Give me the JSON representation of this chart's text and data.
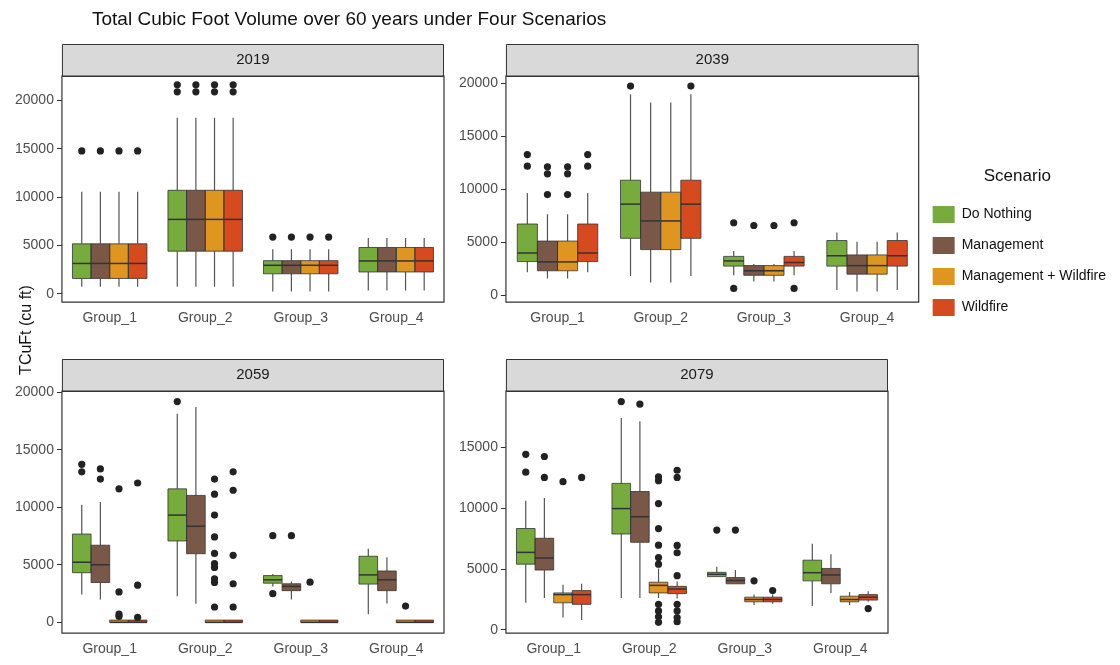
{
  "chart_data": [
    {
      "type": "box",
      "title": "Total Cubic Foot Volume over 60 years under Four Scenarios",
      "subtitle": "2019",
      "ylabel": "TCuFt (cu ft)",
      "categories": [
        "Group_1",
        "Group_2",
        "Group_3",
        "Group_4"
      ],
      "ylim": [
        -880,
        22530
      ],
      "yticks": [
        0,
        5000,
        10000,
        15000,
        20000
      ],
      "series": [
        {
          "color": "#77ab3d",
          "boxes": [
            {
              "low": 730,
              "q1": 1580,
              "median": 3130,
              "q3": 5160,
              "high": 10540,
              "outliers": [
                14780
              ]
            },
            {
              "low": 730,
              "q1": 4400,
              "median": 7690,
              "q3": 10700,
              "high": 18200,
              "outliers": [
                20890,
                21620
              ]
            },
            {
              "low": 220,
              "q1": 2060,
              "median": 2940,
              "q3": 3420,
              "high": 4590,
              "outliers": [
                5860
              ]
            },
            {
              "low": 320,
              "q1": 2250,
              "median": 3390,
              "q3": 4780,
              "high": 5760
            }
          ]
        },
        {
          "color": "#7a5848",
          "boxes": [
            {
              "low": 730,
              "q1": 1580,
              "median": 3130,
              "q3": 5160,
              "high": 10540,
              "outliers": [
                14780
              ]
            },
            {
              "low": 730,
              "q1": 4400,
              "median": 7690,
              "q3": 10700,
              "high": 18200,
              "outliers": [
                20890,
                21620
              ]
            },
            {
              "low": 220,
              "q1": 2060,
              "median": 2940,
              "q3": 3420,
              "high": 4590,
              "outliers": [
                5860
              ]
            },
            {
              "low": 320,
              "q1": 2250,
              "median": 3390,
              "q3": 4780,
              "high": 5760
            }
          ]
        },
        {
          "color": "#de9621",
          "boxes": [
            {
              "low": 730,
              "q1": 1580,
              "median": 3130,
              "q3": 5160,
              "high": 10540,
              "outliers": [
                14780
              ]
            },
            {
              "low": 730,
              "q1": 4400,
              "median": 7690,
              "q3": 10700,
              "high": 18200,
              "outliers": [
                20890,
                21620
              ]
            },
            {
              "low": 220,
              "q1": 2060,
              "median": 2940,
              "q3": 3420,
              "high": 4590,
              "outliers": [
                5860
              ]
            },
            {
              "low": 320,
              "q1": 2250,
              "median": 3390,
              "q3": 4780,
              "high": 5760
            }
          ]
        },
        {
          "color": "#d64a1f",
          "boxes": [
            {
              "low": 730,
              "q1": 1580,
              "median": 3130,
              "q3": 5160,
              "high": 10540,
              "outliers": [
                14780
              ]
            },
            {
              "low": 730,
              "q1": 4400,
              "median": 7690,
              "q3": 10700,
              "high": 18200,
              "outliers": [
                20890,
                21620
              ]
            },
            {
              "low": 220,
              "q1": 2060,
              "median": 2940,
              "q3": 3420,
              "high": 4590,
              "outliers": [
                5860
              ]
            },
            {
              "low": 320,
              "q1": 2250,
              "median": 3390,
              "q3": 4780,
              "high": 5760
            }
          ]
        }
      ]
    },
    {
      "type": "box",
      "subtitle": "2039",
      "legend": "right",
      "legend_title": "Scenario",
      "categories": [
        "Group_1",
        "Group_2",
        "Group_3",
        "Group_4"
      ],
      "ylim": [
        -660,
        20720
      ],
      "yticks": [
        0,
        5000,
        10000,
        15000,
        20000
      ],
      "series": [
        {
          "name": "Do Nothing",
          "color": "#77ab3d",
          "boxes": [
            {
              "low": 2170,
              "q1": 3180,
              "median": 3990,
              "q3": 6730,
              "high": 9650,
              "outliers": [
                12200,
                13290
              ]
            },
            {
              "low": 1820,
              "q1": 5380,
              "median": 8610,
              "q3": 10870,
              "high": 18990,
              "outliers": [
                19770
              ]
            },
            {
              "low": 1880,
              "q1": 2750,
              "median": 3240,
              "q3": 3670,
              "high": 4190,
              "outliers": [
                640,
                6850
              ]
            },
            {
              "low": 490,
              "q1": 2750,
              "median": 3730,
              "q3": 5170,
              "high": 5920
            }
          ]
        },
        {
          "name": "Management",
          "color": "#7a5848",
          "boxes": [
            {
              "low": 1590,
              "q1": 2310,
              "median": 3150,
              "q3": 5120,
              "high": 7660,
              "outliers": [
                9510,
                11470,
                12140
              ]
            },
            {
              "low": 1210,
              "q1": 4310,
              "median": 7020,
              "q3": 9740,
              "high": 18210
            },
            {
              "low": 1300,
              "q1": 1880,
              "median": 2310,
              "q3": 2800,
              "high": 2950,
              "outliers": [
                6590
              ]
            },
            {
              "low": 350,
              "q1": 1990,
              "median": 2800,
              "q3": 3810,
              "high": 5060
            }
          ]
        },
        {
          "name": "Management + Wildfire",
          "color": "#de9621",
          "boxes": [
            {
              "low": 1590,
              "q1": 2310,
              "median": 3150,
              "q3": 5120,
              "high": 7660,
              "outliers": [
                9510,
                11470,
                12140
              ]
            },
            {
              "low": 1210,
              "q1": 4310,
              "median": 7020,
              "q3": 9740,
              "high": 18210
            },
            {
              "low": 1300,
              "q1": 1880,
              "median": 2310,
              "q3": 2800,
              "high": 2950,
              "outliers": [
                6590
              ]
            },
            {
              "low": 350,
              "q1": 1990,
              "median": 2800,
              "q3": 3810,
              "high": 5060
            }
          ]
        },
        {
          "name": "Wildfire",
          "color": "#d64a1f",
          "boxes": [
            {
              "low": 2170,
              "q1": 3180,
              "median": 3990,
              "q3": 6730,
              "high": 9650,
              "outliers": [
                12200,
                13290
              ]
            },
            {
              "low": 1820,
              "q1": 5380,
              "median": 8610,
              "q3": 10870,
              "high": 18990,
              "outliers": [
                19770
              ]
            },
            {
              "low": 1880,
              "q1": 2750,
              "median": 3090,
              "q3": 3670,
              "high": 4190,
              "outliers": [
                640,
                6850
              ]
            },
            {
              "low": 490,
              "q1": 2750,
              "median": 3730,
              "q3": 5170,
              "high": 5920
            }
          ]
        }
      ]
    },
    {
      "type": "box",
      "subtitle": "2059",
      "categories": [
        "Group_1",
        "Group_2",
        "Group_3",
        "Group_4"
      ],
      "ylim": [
        -940,
        20120
      ],
      "yticks": [
        0,
        5000,
        10000,
        15000,
        20000
      ],
      "series": [
        {
          "color": "#77ab3d",
          "boxes": [
            {
              "low": 2420,
              "q1": 4320,
              "median": 5230,
              "q3": 7680,
              "high": 10240,
              "outliers": [
                13090,
                13740
              ]
            },
            {
              "low": 2280,
              "q1": 7080,
              "median": 9330,
              "q3": 11610,
              "high": 18150,
              "outliers": [
                19200
              ]
            },
            {
              "low": 3130,
              "q1": 3410,
              "median": 3700,
              "q3": 4070,
              "high": 4210,
              "outliers": [
                2500,
                7540
              ]
            },
            {
              "low": 710,
              "q1": 3330,
              "median": 4130,
              "q3": 5750,
              "high": 6400
            }
          ]
        },
        {
          "color": "#7a5848",
          "boxes": [
            {
              "low": 1990,
              "q1": 3470,
              "median": 5010,
              "q3": 6710,
              "high": 10470,
              "outliers": [
                12460,
                13340
              ]
            },
            {
              "low": 1620,
              "q1": 5970,
              "median": 8360,
              "q3": 11040,
              "high": 18720
            },
            {
              "low": 1990,
              "q1": 2760,
              "median": 3130,
              "q3": 3360,
              "high": 3560,
              "outliers": [
                7540
              ]
            },
            {
              "low": 1650,
              "q1": 2760,
              "median": 3700,
              "q3": 4470,
              "high": 5660
            }
          ]
        },
        {
          "color": "#de9621",
          "boxes": [
            {
              "low": 0,
              "q1": 0,
              "median": 0,
              "q3": 200,
              "high": 200,
              "outliers": [
                510,
                710,
                2650,
                11610
              ]
            },
            {
              "low": 0,
              "q1": 0,
              "median": 0,
              "q3": 200,
              "high": 200,
              "outliers": [
                1340,
                3470,
                3780,
                4780,
                5120,
                6000,
                7430,
                9330,
                11150,
                12460
              ]
            },
            {
              "low": 0,
              "q1": 0,
              "median": 0,
              "q3": 200,
              "high": 200,
              "outliers": [
                3500
              ]
            },
            {
              "low": 0,
              "q1": 0,
              "median": 0,
              "q3": 200,
              "high": 200,
              "outliers": [
                1420
              ]
            }
          ]
        },
        {
          "color": "#d64a1f",
          "boxes": [
            {
              "low": 0,
              "q1": 0,
              "median": 0,
              "q3": 200,
              "high": 200,
              "outliers": [
                430,
                3240,
                12120
              ]
            },
            {
              "low": 0,
              "q1": 0,
              "median": 0,
              "q3": 200,
              "high": 200,
              "outliers": [
                1340,
                3360,
                5830,
                11490,
                13090
              ]
            },
            {
              "low": 0,
              "q1": 0,
              "median": 0,
              "q3": 200,
              "high": 200
            },
            {
              "low": 0,
              "q1": 0,
              "median": 0,
              "q3": 200,
              "high": 200
            }
          ]
        }
      ]
    },
    {
      "type": "box",
      "subtitle": "2079",
      "categories": [
        "Group_1",
        "Group_2",
        "Group_3",
        "Group_4"
      ],
      "ylim": [
        -270,
        19630
      ],
      "yticks": [
        0,
        5000,
        10000,
        15000
      ],
      "series": [
        {
          "color": "#77ab3d",
          "boxes": [
            {
              "low": 2230,
              "q1": 5400,
              "median": 6370,
              "q3": 8330,
              "high": 10620,
              "outliers": [
                12960,
                14430
              ]
            },
            {
              "low": 2630,
              "q1": 7880,
              "median": 9970,
              "q3": 12040,
              "high": 17420,
              "outliers": [
                18760
              ]
            },
            {
              "low": 4380,
              "q1": 4380,
              "median": 4570,
              "q3": 4730,
              "high": 5190,
              "outliers": [
                8200
              ]
            },
            {
              "low": 1960,
              "q1": 4030,
              "median": 4700,
              "q3": 5730,
              "high": 7070
            }
          ]
        },
        {
          "color": "#7a5848",
          "boxes": [
            {
              "low": 2630,
              "q1": 4920,
              "median": 5910,
              "q3": 7530,
              "high": 10830,
              "outliers": [
                12530,
                14250
              ]
            },
            {
              "low": 2630,
              "q1": 7200,
              "median": 9300,
              "q3": 11370,
              "high": 17150,
              "outliers": [
                18550
              ]
            },
            {
              "low": 3790,
              "q1": 3790,
              "median": 4060,
              "q3": 4300,
              "high": 4920,
              "outliers": [
                8200
              ]
            },
            {
              "low": 3040,
              "q1": 3790,
              "median": 4520,
              "q3": 5050,
              "high": 6210
            }
          ]
        },
        {
          "color": "#de9621",
          "boxes": [
            {
              "low": 1020,
              "q1": 2230,
              "median": 2900,
              "q3": 3040,
              "high": 3710,
              "outliers": [
                12180
              ]
            },
            {
              "low": 2630,
              "q1": 3040,
              "median": 3660,
              "q3": 3920,
              "high": 5050,
              "outliers": [
                620,
                1080,
                1560,
                2100,
                5400,
                5940,
                6960,
                8330,
                10380,
                12260,
                12580
              ]
            },
            {
              "low": 2040,
              "q1": 2310,
              "median": 2500,
              "q3": 2690,
              "high": 2900,
              "outliers": [
                4030
              ]
            },
            {
              "low": 2040,
              "q1": 2310,
              "median": 2500,
              "q3": 2770,
              "high": 3120
            }
          ]
        },
        {
          "color": "#d64a1f",
          "boxes": [
            {
              "low": 810,
              "q1": 2100,
              "median": 2900,
              "q3": 3230,
              "high": 3790,
              "outliers": [
                12530
              ]
            },
            {
              "low": 2580,
              "q1": 2980,
              "median": 3360,
              "q3": 3580,
              "high": 3980,
              "outliers": [
                670,
                1020,
                1560,
                2100,
                4460,
                6340,
                6940,
                12530,
                13120
              ]
            },
            {
              "low": 2150,
              "q1": 2310,
              "median": 2500,
              "q3": 2690,
              "high": 2900,
              "outliers": [
                3230
              ]
            },
            {
              "low": 2310,
              "q1": 2450,
              "median": 2690,
              "q3": 2900,
              "high": 3170,
              "outliers": [
                1750
              ]
            }
          ]
        }
      ]
    }
  ]
}
